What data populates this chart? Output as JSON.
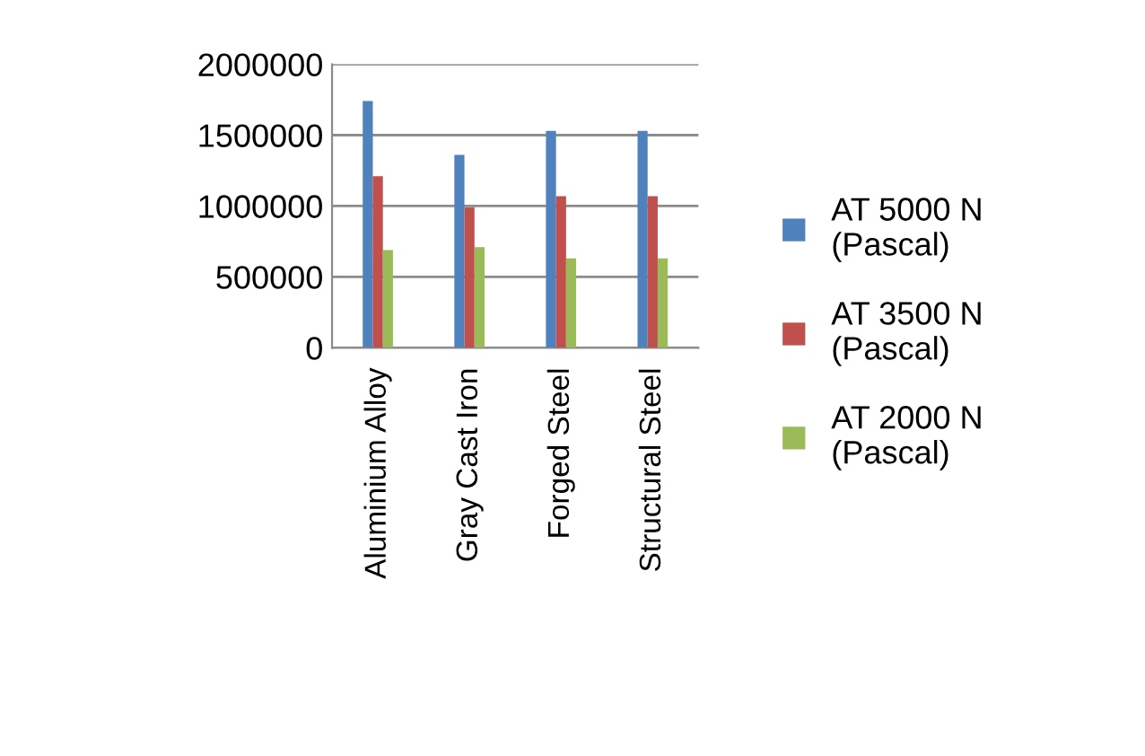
{
  "chart_data": {
    "type": "bar",
    "categories": [
      "Aluminium Alloy",
      "Gray Cast Iron",
      "Forged Steel",
      "Structural Steel"
    ],
    "series": [
      {
        "name": "AT 5000 N\n(Pascal)",
        "color": "#4f81bd",
        "values": [
          1740000,
          1360000,
          1530000,
          1530000
        ]
      },
      {
        "name": "AT 3500 N\n(Pascal)",
        "color": "#c0504d",
        "values": [
          1210000,
          990000,
          1070000,
          1070000
        ]
      },
      {
        "name": "AT 2000 N\n(Pascal)",
        "color": "#9bbb59",
        "values": [
          690000,
          710000,
          630000,
          630000
        ]
      }
    ],
    "ylim": [
      0,
      2000000
    ],
    "yticks": [
      0,
      500000,
      1000000,
      1500000,
      2000000
    ],
    "grid": "y",
    "legend": "right"
  }
}
